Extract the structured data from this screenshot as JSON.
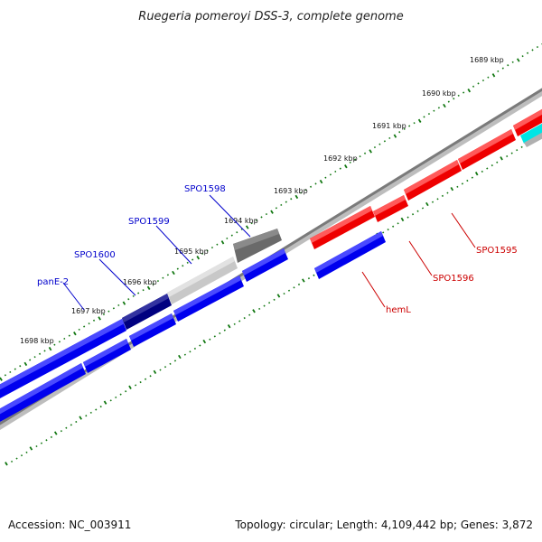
{
  "title": "Ruegeria pomeroyi DSS-3, complete genome",
  "footer": {
    "accession": "Accession: NC_003911",
    "summary": "Topology: circular; Length: 4,109,442 bp; Genes: 3,872"
  },
  "scale_labels": [
    "1689 kbp",
    "1690 kbp",
    "1691 kbp",
    "1692 kbp",
    "1693 kbp",
    "1694 kbp",
    "1695 kbp",
    "1696 kbp",
    "1697 kbp",
    "1698 kbp"
  ],
  "gene_labels": {
    "forward": [
      "SPO1598",
      "SPO1599",
      "SPO1600",
      "panE-2"
    ],
    "reverse": [
      "SPO1595",
      "SPO1596",
      "hemL"
    ]
  },
  "colors": {
    "forward_label": "#0000cc",
    "reverse_label": "#cc0000",
    "cds_forward": "#0000ee",
    "cds_reverse": "#ee0000",
    "backbone": "#808080",
    "scale_ticks": "#117711",
    "highlight_dark": "#000080",
    "highlight_light": "#c8c8c8",
    "highlight_gray": "#707070",
    "highlight_cyan": "#00e5e5"
  }
}
